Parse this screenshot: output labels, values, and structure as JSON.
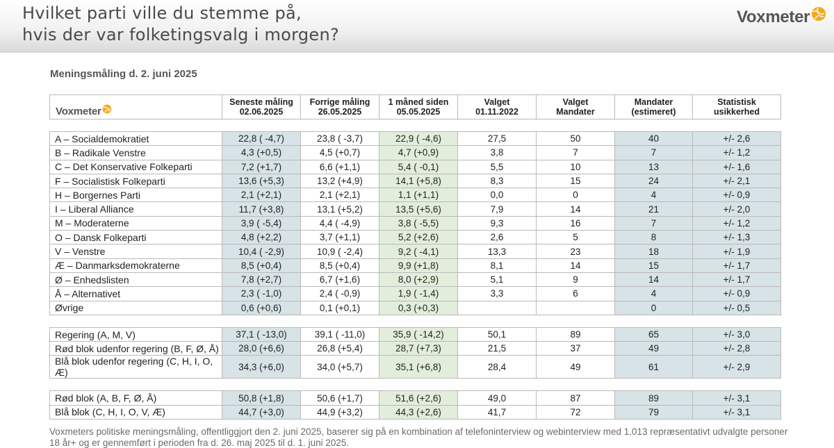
{
  "header": {
    "title": "Hvilket parti ville du stemme på,\nhvis der var folketingsvalg i morgen?",
    "brand": "Voxmeter",
    "brand_color": "#f4a91f"
  },
  "subtitle": "Meningsmåling d. 2. juni 2025",
  "table": {
    "brand": "Voxmeter",
    "headers": [
      "Seneste måling\n02.06.2025",
      "Forrige  måling\n26.05.2025",
      "1 måned siden\n05.05.2025",
      "Valget\n01.11.2022",
      "Valget\nMandater",
      "Mandater\n(estimeret)",
      "Statistisk\nusikkerhed"
    ],
    "parties": [
      [
        "A – Socialdemokratiet",
        "22,8 ( -4,7)",
        "23,8 ( -3,7)",
        "22,9 ( -4,6)",
        "27,5",
        "50",
        "40",
        "+/- 2,6"
      ],
      [
        "B – Radikale Venstre",
        "4,3 (+0,5)",
        "4,5 (+0,7)",
        "4,7 (+0,9)",
        "3,8",
        "7",
        "7",
        "+/- 1,2"
      ],
      [
        "C – Det Konservative Folkeparti",
        "7,2 (+1,7)",
        "6,6 (+1,1)",
        "5,4 ( -0,1)",
        "5,5",
        "10",
        "13",
        "+/- 1,6"
      ],
      [
        "F – Socialistisk Folkeparti",
        "13,6 (+5,3)",
        "13,2 (+4,9)",
        "14,1 (+5,8)",
        "8,3",
        "15",
        "24",
        "+/- 2,1"
      ],
      [
        "H – Borgernes Parti",
        "2,1 (+2,1)",
        "2,1 (+2,1)",
        "1,1 (+1,1)",
        "0,0",
        "0",
        "4",
        "+/- 0,9"
      ],
      [
        "I – Liberal Alliance",
        "11,7 (+3,8)",
        "13,1 (+5,2)",
        "13,5 (+5,6)",
        "7,9",
        "14",
        "21",
        "+/- 2,0"
      ],
      [
        "M – Moderaterne",
        "3,9 ( -5,4)",
        "4,4 ( -4,9)",
        "3,8 ( -5,5)",
        "9,3",
        "16",
        "7",
        "+/- 1,2"
      ],
      [
        "O – Dansk Folkeparti",
        "4,8 (+2,2)",
        "3,7 (+1,1)",
        "5,2 (+2,6)",
        "2,6",
        "5",
        "8",
        "+/- 1,3"
      ],
      [
        "V – Venstre",
        "10,4 ( -2,9)",
        "10,9 ( -2,4)",
        "9,2 ( -4,1)",
        "13,3",
        "23",
        "18",
        "+/- 1,9"
      ],
      [
        "Æ – Danmarksdemokraterne",
        "8,5 (+0,4)",
        "8,5 (+0,4)",
        "9,9 (+1,8)",
        "8,1",
        "14",
        "15",
        "+/- 1,7"
      ],
      [
        "Ø – Enhedslisten",
        "7,8 (+2,7)",
        "6,7 (+1,6)",
        "8,0 (+2,9)",
        "5,1",
        "9",
        "14",
        "+/- 1,7"
      ],
      [
        "Å – Alternativet",
        "2,3 ( -1,0)",
        "2,4 ( -0,9)",
        "1,9 ( -1,4)",
        "3,3",
        "6",
        "4",
        "+/- 0,9"
      ],
      [
        "Øvrige",
        "0,6 (+0,6)",
        "0,1 (+0,1)",
        "0,3 (+0,3)",
        "",
        "",
        "0",
        "+/- 0,5"
      ]
    ],
    "groups": [
      [
        "Regering (A, M, V)",
        "37,1 ( -13,0)",
        "39,1 ( -11,0)",
        "35,9 ( -14,2)",
        "50,1",
        "89",
        "65",
        "+/- 3,0"
      ],
      [
        "Rød blok udenfor regering (B, F, Ø, Å)",
        "28,0 (+6,6)",
        "26,8 (+5,4)",
        "28,7 (+7,3)",
        "21,5",
        "37",
        "49",
        "+/- 2,8"
      ],
      [
        "Blå blok udenfor regering (C, H, I, O, Æ)",
        "34,3 (+6,0)",
        "34,0 (+5,7)",
        "35,1 (+6,8)",
        "28,4",
        "49",
        "61",
        "+/- 2,9"
      ]
    ],
    "blocs": [
      [
        "Rød blok (A, B, F, Ø, Å)",
        "50,8 (+1,8)",
        "50,6 (+1,7)",
        "51,6 (+2,6)",
        "49,0",
        "87",
        "89",
        "+/- 3,1"
      ],
      [
        "Blå blok (C, H, I, O, V, Æ)",
        "44,7 (+3,0)",
        "44,9 (+3,2)",
        "44,3 (+2,6)",
        "41,7",
        "72",
        "79",
        "+/- 3,1"
      ]
    ],
    "colors": {
      "blue_cell": "#d7e3e6",
      "green_cell": "#e2eedb"
    }
  },
  "footnote": "Voxmeters politiske meningsmåling, offentliggjort den 2. juni 2025, baserer sig på en kombination af telefoninterview og webinterview med 1.013 repræsentativt udvalgte personer 18 år+ og er gennemført i perioden fra d. 26. maj 2025 til d. 1. juni 2025."
}
